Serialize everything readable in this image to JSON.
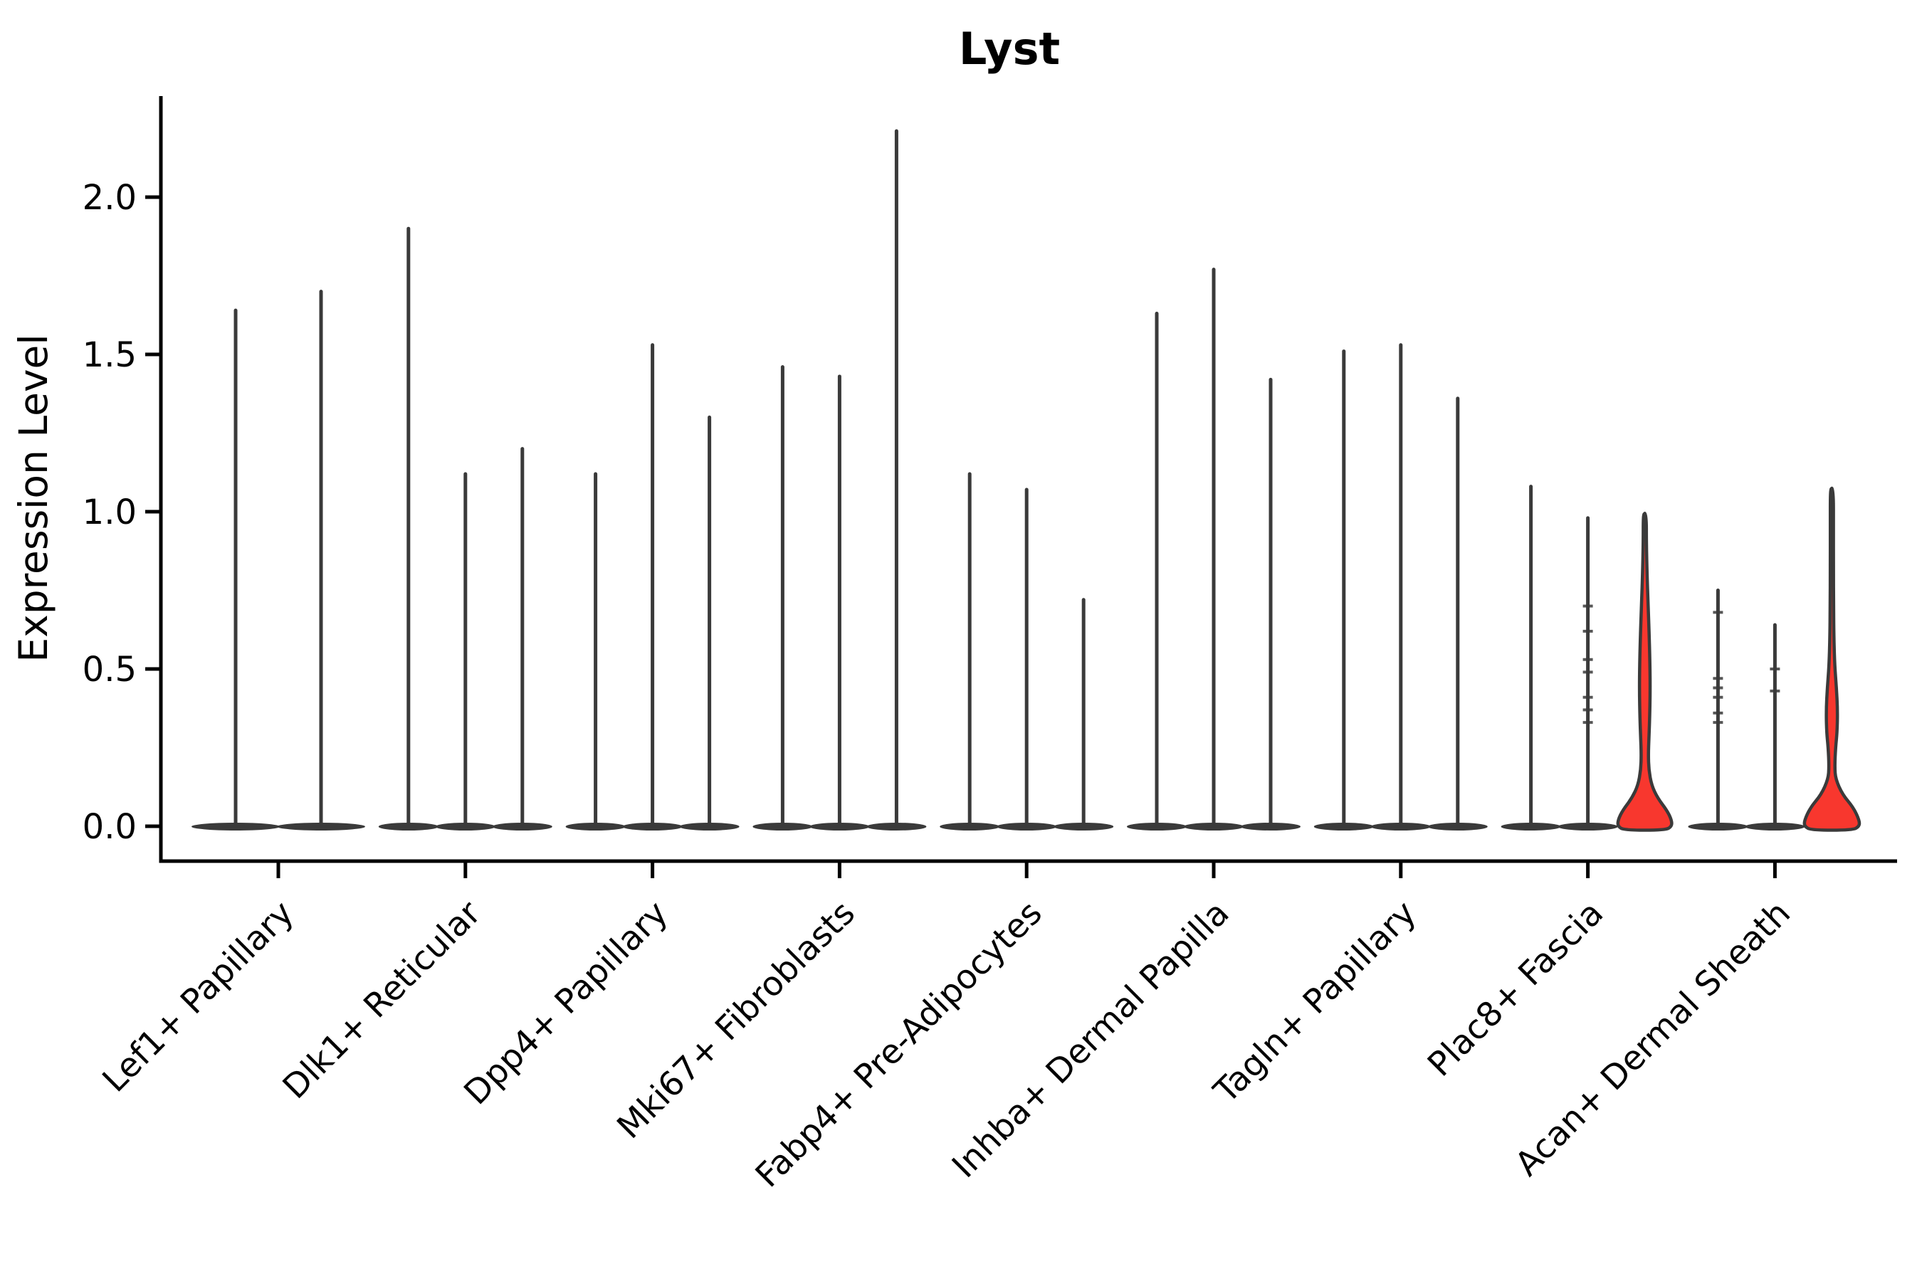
{
  "title": "Lyst",
  "axes": {
    "ylabel": "Expression Level",
    "ytick_labels": [
      "0.0",
      "0.5",
      "1.0",
      "1.5",
      "2.0"
    ]
  },
  "colors": {
    "highlight_fill": "#f8372e",
    "violin_stroke": "#3a3a3a",
    "axis": "#000000",
    "text": "#000000",
    "background": "#ffffff"
  },
  "chart_data": {
    "type": "violin",
    "title": "Lyst",
    "ylabel": "Expression Level",
    "xlabel": "",
    "ylim": [
      0,
      2.33
    ],
    "yticks": [
      0.0,
      0.5,
      1.0,
      1.5,
      2.0
    ],
    "grid": false,
    "legend": "none",
    "x_tick_rotation": 45,
    "categories": [
      "Lef1+ Papillary",
      "Dlk1+ Reticular",
      "Dpp4+ Papillary",
      "Mki67+ Fibroblasts",
      "Fabp4+ Pre-Adipocytes",
      "Inhba+ Dermal Papilla",
      "Tagln+ Papillary",
      "Plac8+ Fascia",
      "Acan+ Dermal Sheath"
    ],
    "description": "Violin plot of Lyst expression. Each cluster contains multiple violins; almost all collapse to a flat pancake at 0 with a thin vertical spike to the maximum expression value. The third violins of Plac8+ Fascia and Acan+ Dermal Sheath are filled red with a visible density bulge and wide base.",
    "groups": [
      {
        "label": "Lef1+ Papillary",
        "violins": [
          {
            "style": "spike",
            "max": 1.64
          },
          {
            "style": "spike",
            "max": 1.7
          }
        ]
      },
      {
        "label": "Dlk1+ Reticular",
        "violins": [
          {
            "style": "spike",
            "max": 1.9
          },
          {
            "style": "spike",
            "max": 1.12
          },
          {
            "style": "spike",
            "max": 1.2
          }
        ]
      },
      {
        "label": "Dpp4+ Papillary",
        "violins": [
          {
            "style": "spike",
            "max": 1.12
          },
          {
            "style": "spike",
            "max": 1.53
          },
          {
            "style": "spike",
            "max": 1.3
          }
        ]
      },
      {
        "label": "Mki67+ Fibroblasts",
        "violins": [
          {
            "style": "spike",
            "max": 1.46
          },
          {
            "style": "spike",
            "max": 1.43
          },
          {
            "style": "spike",
            "max": 2.21
          }
        ]
      },
      {
        "label": "Fabp4+ Pre-Adipocytes",
        "violins": [
          {
            "style": "spike",
            "max": 1.12
          },
          {
            "style": "spike",
            "max": 1.07
          },
          {
            "style": "spike",
            "max": 0.72
          }
        ]
      },
      {
        "label": "Inhba+ Dermal Papilla",
        "violins": [
          {
            "style": "spike",
            "max": 1.63
          },
          {
            "style": "spike",
            "max": 1.77
          },
          {
            "style": "spike",
            "max": 1.42
          }
        ]
      },
      {
        "label": "Tagln+ Papillary",
        "violins": [
          {
            "style": "spike",
            "max": 1.51
          },
          {
            "style": "spike",
            "max": 1.53
          },
          {
            "style": "spike",
            "max": 1.36
          }
        ]
      },
      {
        "label": "Plac8+ Fascia",
        "violins": [
          {
            "style": "spike",
            "max": 1.08
          },
          {
            "style": "spike",
            "max": 0.98,
            "point_marks": [
              0.7,
              0.62,
              0.53,
              0.49,
              0.41,
              0.37,
              0.33
            ]
          },
          {
            "style": "filled",
            "max": 0.99,
            "profile": [
              [
                0.99,
                0.05
              ],
              [
                0.9,
                0.055
              ],
              [
                0.8,
                0.08
              ],
              [
                0.72,
                0.11
              ],
              [
                0.62,
                0.15
              ],
              [
                0.52,
                0.18
              ],
              [
                0.43,
                0.19
              ],
              [
                0.34,
                0.17
              ],
              [
                0.28,
                0.145
              ],
              [
                0.23,
                0.125
              ],
              [
                0.18,
                0.14
              ],
              [
                0.13,
                0.24
              ],
              [
                0.09,
                0.45
              ],
              [
                0.05,
                0.78
              ],
              [
                0.02,
                0.94
              ],
              [
                0.0,
                0.95
              ]
            ]
          }
        ]
      },
      {
        "label": "Acan+ Dermal Sheath",
        "violins": [
          {
            "style": "spike",
            "max": 0.75,
            "point_marks": [
              0.68,
              0.47,
              0.44,
              0.41,
              0.36,
              0.33
            ]
          },
          {
            "style": "spike",
            "max": 0.64,
            "point_marks": [
              0.5,
              0.43
            ]
          },
          {
            "style": "filled",
            "max": 1.07,
            "profile": [
              [
                1.07,
                0.05
              ],
              [
                0.95,
                0.05
              ],
              [
                0.82,
                0.055
              ],
              [
                0.7,
                0.06
              ],
              [
                0.6,
                0.07
              ],
              [
                0.51,
                0.1
              ],
              [
                0.44,
                0.16
              ],
              [
                0.37,
                0.2
              ],
              [
                0.3,
                0.185
              ],
              [
                0.25,
                0.13
              ],
              [
                0.19,
                0.1
              ],
              [
                0.15,
                0.13
              ],
              [
                0.1,
                0.38
              ],
              [
                0.06,
                0.75
              ],
              [
                0.02,
                0.96
              ],
              [
                0.0,
                0.97
              ]
            ]
          }
        ]
      }
    ]
  }
}
